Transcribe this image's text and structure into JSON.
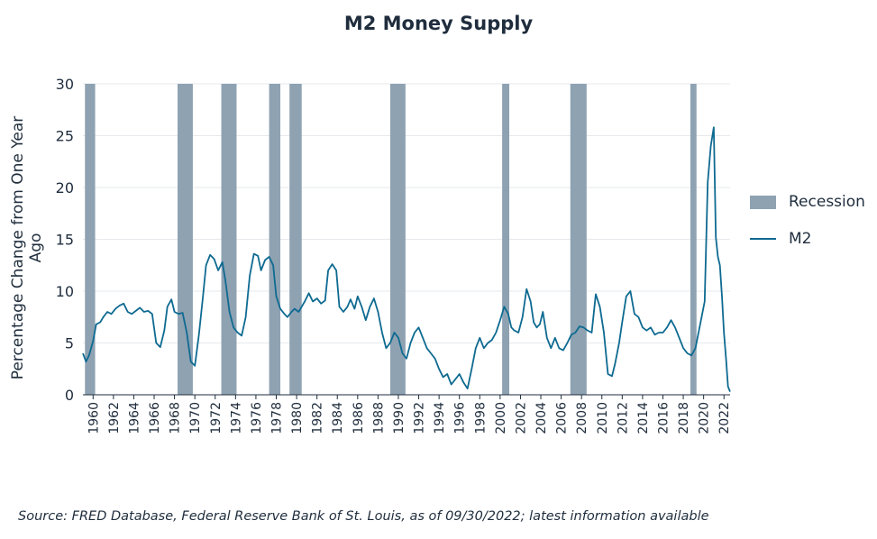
{
  "chart_data": {
    "type": "line",
    "title": "M2 Money Supply",
    "ylabel": "Percentage Change from One Year Ago",
    "xlabel": "",
    "ylim": [
      0,
      30
    ],
    "xlim": [
      1959.0,
      2022.6
    ],
    "yticks": [
      0,
      5,
      10,
      15,
      20,
      25,
      30
    ],
    "xticks": [
      1960,
      1962,
      1964,
      1966,
      1968,
      1970,
      1972,
      1974,
      1976,
      1978,
      1980,
      1982,
      1984,
      1986,
      1988,
      1990,
      1992,
      1994,
      1996,
      1998,
      2000,
      2002,
      2004,
      2006,
      2008,
      2010,
      2012,
      2014,
      2016,
      2018,
      2020,
      2022
    ],
    "grid": "horizontal",
    "legend_position": "right",
    "recessions": [
      {
        "start": 1959.2,
        "end": 1960.2
      },
      {
        "start": 1968.3,
        "end": 1969.8
      },
      {
        "start": 1972.6,
        "end": 1974.1
      },
      {
        "start": 1977.3,
        "end": 1978.4
      },
      {
        "start": 1979.3,
        "end": 1980.5
      },
      {
        "start": 1989.2,
        "end": 1990.7
      },
      {
        "start": 2000.2,
        "end": 2000.9
      },
      {
        "start": 2006.9,
        "end": 2008.5
      },
      {
        "start": 2018.7,
        "end": 2019.3
      }
    ],
    "series": [
      {
        "name": "M2",
        "x": [
          1959.0,
          1959.3,
          1959.6,
          1960.0,
          1960.3,
          1960.7,
          1961.0,
          1961.4,
          1961.8,
          1962.2,
          1962.6,
          1963.0,
          1963.4,
          1963.8,
          1964.2,
          1964.6,
          1965.0,
          1965.4,
          1965.8,
          1966.2,
          1966.6,
          1967.0,
          1967.3,
          1967.7,
          1968.0,
          1968.4,
          1968.8,
          1969.2,
          1969.6,
          1970.0,
          1970.4,
          1970.8,
          1971.1,
          1971.5,
          1971.9,
          1972.3,
          1972.7,
          1973.0,
          1973.4,
          1973.8,
          1974.2,
          1974.6,
          1975.0,
          1975.4,
          1975.8,
          1976.2,
          1976.5,
          1976.9,
          1977.3,
          1977.7,
          1978.0,
          1978.4,
          1978.8,
          1979.1,
          1979.5,
          1979.8,
          1980.2,
          1980.5,
          1980.8,
          1981.2,
          1981.6,
          1982.0,
          1982.4,
          1982.8,
          1983.1,
          1983.5,
          1983.9,
          1984.2,
          1984.6,
          1985.0,
          1985.3,
          1985.7,
          1986.0,
          1986.4,
          1986.8,
          1987.2,
          1987.6,
          1988.0,
          1988.4,
          1988.8,
          1989.2,
          1989.6,
          1990.0,
          1990.4,
          1990.8,
          1991.2,
          1991.6,
          1992.0,
          1992.4,
          1992.8,
          1993.2,
          1993.6,
          1994.0,
          1994.4,
          1994.8,
          1995.2,
          1995.6,
          1996.0,
          1996.4,
          1996.8,
          1997.2,
          1997.6,
          1998.0,
          1998.4,
          1998.8,
          1999.2,
          1999.6,
          2000.0,
          2000.4,
          2000.8,
          2001.1,
          2001.4,
          2001.8,
          2002.2,
          2002.6,
          2003.0,
          2003.3,
          2003.6,
          2003.9,
          2004.2,
          2004.6,
          2005.0,
          2005.4,
          2005.8,
          2006.2,
          2006.6,
          2007.0,
          2007.4,
          2007.8,
          2008.2,
          2008.6,
          2009.0,
          2009.4,
          2009.8,
          2010.2,
          2010.6,
          2011.0,
          2011.3,
          2011.7,
          2012.0,
          2012.4,
          2012.8,
          2013.2,
          2013.6,
          2014.0,
          2014.4,
          2014.8,
          2015.2,
          2015.6,
          2016.0,
          2016.4,
          2016.8,
          2017.2,
          2017.6,
          2018.0,
          2018.4,
          2018.8,
          2019.2,
          2019.5,
          2019.8,
          2020.1,
          2020.4,
          2020.7,
          2021.0,
          2021.2,
          2021.4,
          2021.6,
          2021.8,
          2022.0,
          2022.2,
          2022.4,
          2022.6
        ],
        "values": [
          4.0,
          3.2,
          3.8,
          5.2,
          6.8,
          7.0,
          7.5,
          8.0,
          7.8,
          8.3,
          8.6,
          8.8,
          8.0,
          7.8,
          8.1,
          8.4,
          8.0,
          8.1,
          7.8,
          5.0,
          4.6,
          6.2,
          8.5,
          9.2,
          8.0,
          7.8,
          7.9,
          6.0,
          3.2,
          2.8,
          5.8,
          9.5,
          12.5,
          13.5,
          13.1,
          12.0,
          12.8,
          11.0,
          8.0,
          6.5,
          6.0,
          5.7,
          7.5,
          11.5,
          13.6,
          13.4,
          12.0,
          13.0,
          13.3,
          12.5,
          9.5,
          8.3,
          7.8,
          7.5,
          8.0,
          8.3,
          8.0,
          8.5,
          9.0,
          9.8,
          9.0,
          9.3,
          8.8,
          9.1,
          12.0,
          12.6,
          12.0,
          8.5,
          8.0,
          8.5,
          9.2,
          8.3,
          9.5,
          8.5,
          7.2,
          8.5,
          9.3,
          8.0,
          6.0,
          4.5,
          5.0,
          6.0,
          5.5,
          4.0,
          3.5,
          5.0,
          6.0,
          6.5,
          5.5,
          4.5,
          4.0,
          3.5,
          2.5,
          1.7,
          2.0,
          1.0,
          1.5,
          2.0,
          1.2,
          0.6,
          2.5,
          4.5,
          5.5,
          4.5,
          5.0,
          5.3,
          6.0,
          7.2,
          8.5,
          7.8,
          6.5,
          6.2,
          6.0,
          7.5,
          10.2,
          9.0,
          7.0,
          6.5,
          6.8,
          8.0,
          5.5,
          4.5,
          5.5,
          4.5,
          4.3,
          5.0,
          5.8,
          6.0,
          6.6,
          6.5,
          6.2,
          6.0,
          9.7,
          8.5,
          6.0,
          2.0,
          1.8,
          3.0,
          5.0,
          7.0,
          9.5,
          10.0,
          7.8,
          7.5,
          6.5,
          6.2,
          6.5,
          5.8,
          6.0,
          6.0,
          6.5,
          7.2,
          6.5,
          5.5,
          4.5,
          4.0,
          3.8,
          4.5,
          6.0,
          7.5,
          9.0,
          20.5,
          24.0,
          25.8,
          15.2,
          13.3,
          12.5,
          9.5,
          6.0,
          3.5,
          0.8,
          0.3
        ]
      }
    ],
    "legend": [
      {
        "label": "Recession",
        "kind": "box",
        "color": "#8ea2b2"
      },
      {
        "label": "M2",
        "kind": "line",
        "color": "#0e6a91"
      }
    ],
    "colors": {
      "recession": "#8ea2b2",
      "line": "#0e6a91",
      "grid": "#e6e9ec",
      "axis": "#1f2d3d"
    }
  },
  "source_note": "Source: FRED Database, Federal Reserve Bank of St. Louis, as of 09/30/2022; latest information available"
}
